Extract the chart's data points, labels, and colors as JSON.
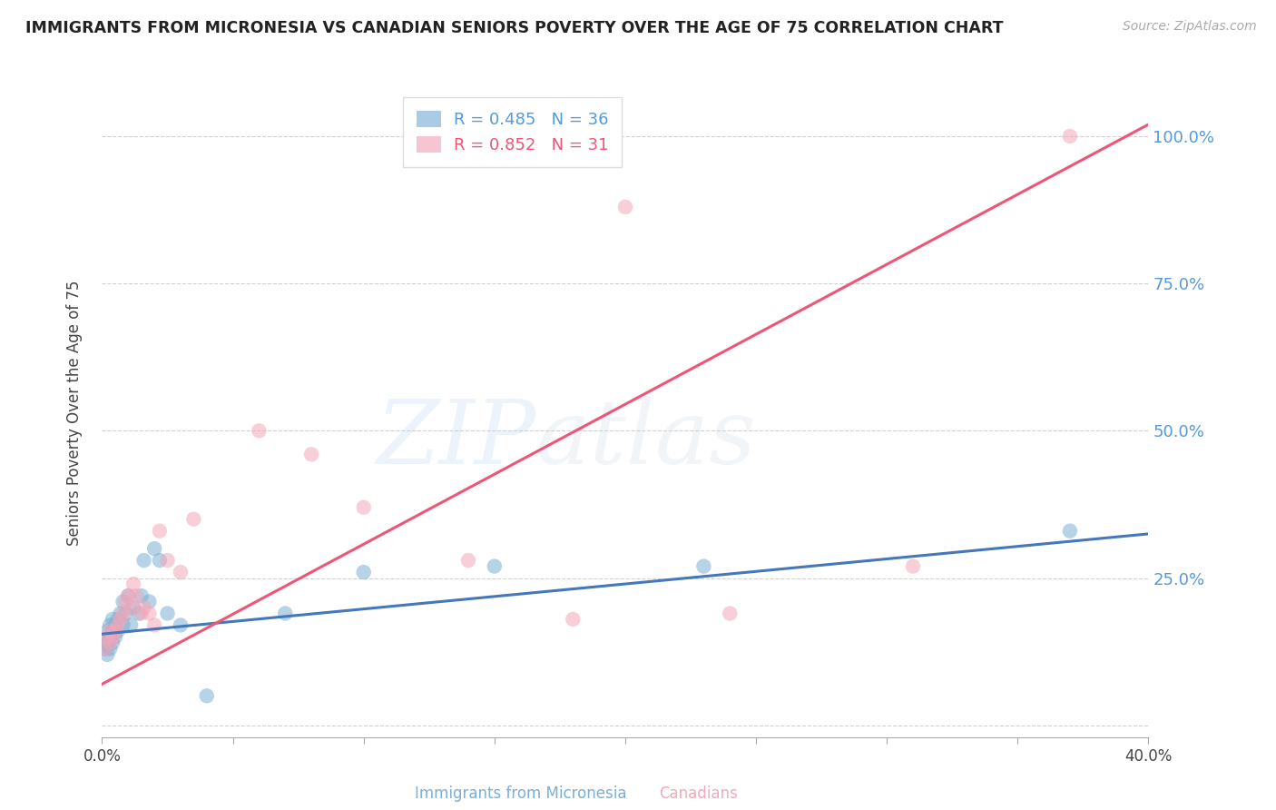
{
  "title": "IMMIGRANTS FROM MICRONESIA VS CANADIAN SENIORS POVERTY OVER THE AGE OF 75 CORRELATION CHART",
  "source": "Source: ZipAtlas.com",
  "ylabel": "Seniors Poverty Over the Age of 75",
  "xlabel_blue": "Immigrants from Micronesia",
  "xlabel_pink": "Canadians",
  "xlim": [
    0.0,
    0.4
  ],
  "ylim": [
    -0.02,
    1.08
  ],
  "yticks": [
    0.0,
    0.25,
    0.5,
    0.75,
    1.0
  ],
  "ytick_labels": [
    "",
    "25.0%",
    "50.0%",
    "75.0%",
    "100.0%"
  ],
  "xticks": [
    0.0,
    0.05,
    0.1,
    0.15,
    0.2,
    0.25,
    0.3,
    0.35,
    0.4
  ],
  "xtick_labels": [
    "0.0%",
    "",
    "",
    "",
    "",
    "",
    "",
    "",
    "40.0%"
  ],
  "blue_R": 0.485,
  "blue_N": 36,
  "pink_R": 0.852,
  "pink_N": 31,
  "blue_color": "#7BAFD4",
  "pink_color": "#F4A7B9",
  "blue_line_color": "#4477BB",
  "pink_line_color": "#EE5577",
  "blue_scatter_x": [
    0.001,
    0.001,
    0.002,
    0.002,
    0.002,
    0.003,
    0.003,
    0.003,
    0.004,
    0.004,
    0.004,
    0.005,
    0.005,
    0.006,
    0.006,
    0.007,
    0.008,
    0.008,
    0.009,
    0.01,
    0.011,
    0.012,
    0.014,
    0.015,
    0.016,
    0.018,
    0.02,
    0.022,
    0.025,
    0.03,
    0.04,
    0.07,
    0.1,
    0.15,
    0.23,
    0.37
  ],
  "blue_scatter_y": [
    0.13,
    0.14,
    0.12,
    0.14,
    0.16,
    0.13,
    0.15,
    0.17,
    0.14,
    0.16,
    0.18,
    0.15,
    0.17,
    0.16,
    0.18,
    0.19,
    0.17,
    0.21,
    0.19,
    0.22,
    0.17,
    0.2,
    0.19,
    0.22,
    0.28,
    0.21,
    0.3,
    0.28,
    0.19,
    0.17,
    0.05,
    0.19,
    0.26,
    0.27,
    0.27,
    0.33
  ],
  "pink_scatter_x": [
    0.001,
    0.002,
    0.003,
    0.003,
    0.004,
    0.005,
    0.006,
    0.007,
    0.008,
    0.009,
    0.01,
    0.011,
    0.012,
    0.013,
    0.015,
    0.016,
    0.018,
    0.02,
    0.022,
    0.025,
    0.03,
    0.035,
    0.06,
    0.08,
    0.1,
    0.14,
    0.18,
    0.2,
    0.24,
    0.31,
    0.37
  ],
  "pink_scatter_y": [
    0.13,
    0.15,
    0.14,
    0.16,
    0.15,
    0.16,
    0.17,
    0.18,
    0.19,
    0.21,
    0.22,
    0.2,
    0.24,
    0.22,
    0.19,
    0.2,
    0.19,
    0.17,
    0.33,
    0.28,
    0.26,
    0.35,
    0.5,
    0.46,
    0.37,
    0.28,
    0.18,
    0.88,
    0.19,
    0.27,
    1.0
  ],
  "blue_trend_x": [
    0.0,
    0.4
  ],
  "blue_trend_y": [
    0.155,
    0.325
  ],
  "pink_trend_x": [
    0.0,
    0.4
  ],
  "pink_trend_y": [
    0.07,
    1.02
  ],
  "watermark_zip": "ZIP",
  "watermark_atlas": "atlas",
  "background_color": "#FFFFFF"
}
